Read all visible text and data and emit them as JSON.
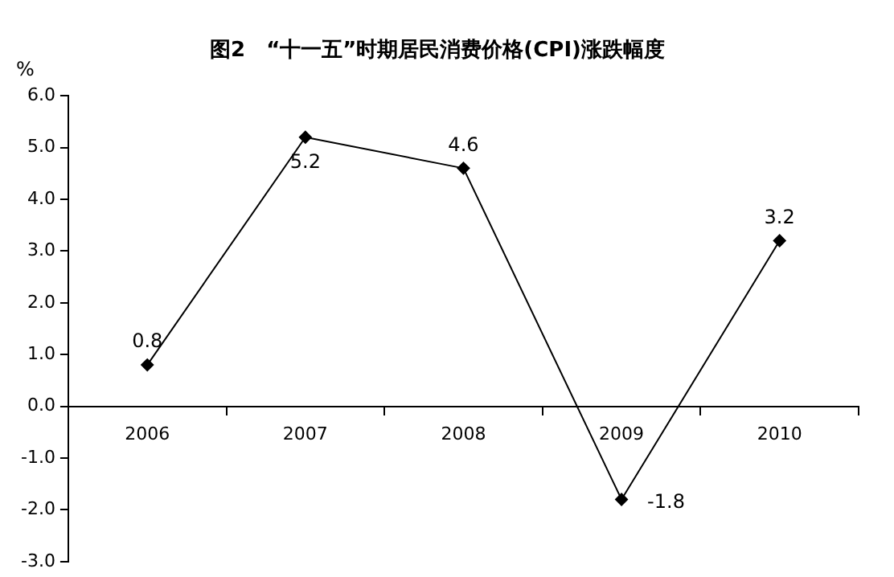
{
  "chart_data": {
    "type": "line",
    "title": "图2　“十一五”时期居民消费价格(CPI)涨跌幅度",
    "ylabel": "%",
    "categories": [
      "2006",
      "2007",
      "2008",
      "2009",
      "2010"
    ],
    "series": [
      {
        "color": "#000000",
        "values": [
          0.8,
          5.2,
          4.6,
          -1.8,
          3.2
        ]
      }
    ],
    "ylim": [
      -3,
      6
    ],
    "yticks": [
      {
        "value": -3,
        "label": "-3.0"
      },
      {
        "value": -2,
        "label": "-2.0"
      },
      {
        "value": -1,
        "label": "-1.0"
      },
      {
        "value": 0,
        "label": "0.0"
      },
      {
        "value": 1,
        "label": "1.0"
      },
      {
        "value": 2,
        "label": "2.0"
      },
      {
        "value": 3,
        "label": "3.0"
      },
      {
        "value": 4,
        "label": "4.0"
      },
      {
        "value": 5,
        "label": "5.0"
      },
      {
        "value": 6,
        "label": "6.0"
      }
    ],
    "grid": false,
    "legend": false,
    "marker": "diamond",
    "line_style": "solid",
    "data_labels": true
  }
}
